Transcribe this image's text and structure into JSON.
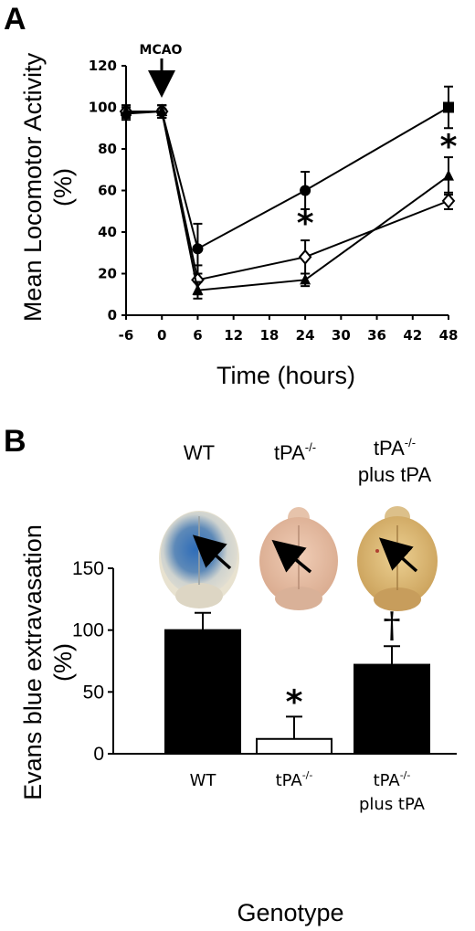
{
  "panels": {
    "a": "A",
    "b": "B"
  },
  "chart_data": [
    {
      "type": "line",
      "ylabel": "Mean Locomotor Activity (%)",
      "ylabel_line1": "Mean Locomotor Activity",
      "ylabel_line2": "(%)",
      "xlabel": "Time (hours)",
      "x": [
        -6,
        0,
        6,
        24,
        48
      ],
      "xticks": [
        "-6",
        "0",
        "6",
        "12",
        "18",
        "24",
        "30",
        "36",
        "42",
        "48"
      ],
      "yticks": [
        "0",
        "20",
        "40",
        "60",
        "80",
        "100",
        "120"
      ],
      "xlim": [
        -6,
        48
      ],
      "ylim": [
        0,
        120
      ],
      "series": [
        {
          "marker": "filled-circle",
          "values": [
            97,
            98,
            32,
            60,
            100
          ],
          "err": [
            3,
            3,
            12,
            9,
            10
          ]
        },
        {
          "marker": "open-diamond",
          "values": [
            98,
            98,
            17,
            28,
            55
          ],
          "err": [
            3,
            3,
            7,
            8,
            4
          ]
        },
        {
          "marker": "filled-triangle",
          "values": [
            98,
            98,
            12,
            17,
            67
          ],
          "err": [
            3,
            3,
            4,
            3,
            9
          ]
        }
      ],
      "annotations": {
        "arrow_label": "MCAO",
        "arrow_x": 0,
        "stars": [
          {
            "x": 24,
            "y": 45,
            "text": "*"
          },
          {
            "x": 48,
            "y": 82,
            "text": "*"
          }
        ]
      }
    },
    {
      "type": "bar",
      "ylabel": "Evans blue extravasation (%)",
      "ylabel_line1": "Evans blue extravasation",
      "ylabel_line2": "(%)",
      "xlabel": "Genotype",
      "categories": [
        "WT",
        "tPA-/-",
        "tPA-/- plus tPA"
      ],
      "values": [
        100,
        12,
        72
      ],
      "err": [
        14,
        18,
        15
      ],
      "bar_colors": [
        "#000000",
        "#ffffff",
        "#000000"
      ],
      "yticks": [
        "0",
        "50",
        "100",
        "150"
      ],
      "ylim": [
        0,
        150
      ],
      "category_labels": {
        "wt": "WT",
        "ko_main": "tPA",
        "ko_sup": "-/-",
        "kop_main": "tPA",
        "kop_sup": "-/-",
        "kop_line2": "plus tPA"
      },
      "header_labels": {
        "wt": "WT",
        "ko_main": "tPA",
        "ko_sup": "-/-",
        "kop_main": "tPA",
        "kop_sup": "-/-",
        "kop_line2": "plus tPA"
      },
      "annotations": [
        {
          "category": "tPA-/-",
          "text": "*"
        },
        {
          "category": "tPA-/- plus tPA",
          "text": "†"
        }
      ]
    }
  ],
  "brain_photos": [
    {
      "name": "wt-brain-photo",
      "tint": "#3b73b8",
      "base": "#e8dcc6"
    },
    {
      "name": "ko-brain-photo",
      "tint": "#e2b9a2",
      "base": "#e8c9b2"
    },
    {
      "name": "kop-brain-photo",
      "tint": "#d9b472",
      "base": "#dcc38c"
    }
  ]
}
